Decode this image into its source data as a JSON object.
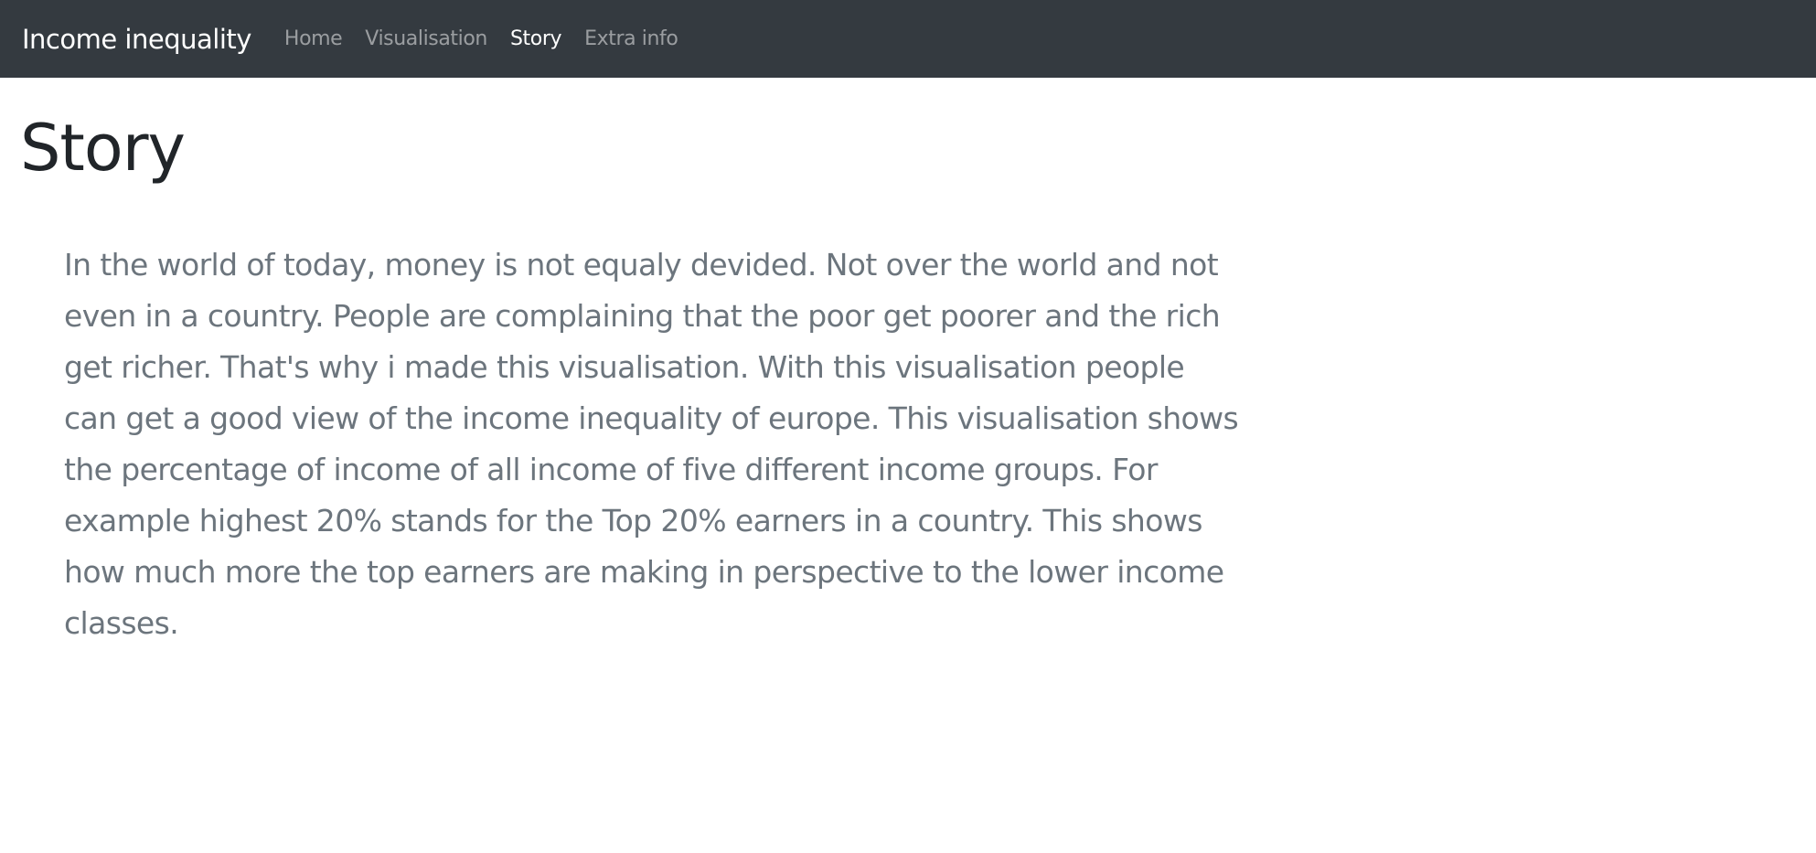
{
  "navbar": {
    "brand": "Income inequality",
    "links": [
      {
        "label": "Home",
        "active": false
      },
      {
        "label": "Visualisation",
        "active": false
      },
      {
        "label": "Story",
        "active": true
      },
      {
        "label": "Extra info",
        "active": false
      }
    ]
  },
  "main": {
    "title": "Story",
    "paragraph": "In the world of today, money is not equaly devided. Not over the world and not even in a country. People are complaining that the poor get poorer and the rich get richer. That's why i made this visualisation. With this visualisation people can get a good view of the income inequality of europe. This visualisation shows the percentage of income of all income of five different income groups. For example highest 20% stands for the Top 20% earners in a country. This shows how much more the top earners are making in perspective to the lower income classes."
  },
  "colors": {
    "navbar_bg": "#343a40",
    "title_text": "#212529",
    "body_text": "#6c757d"
  }
}
